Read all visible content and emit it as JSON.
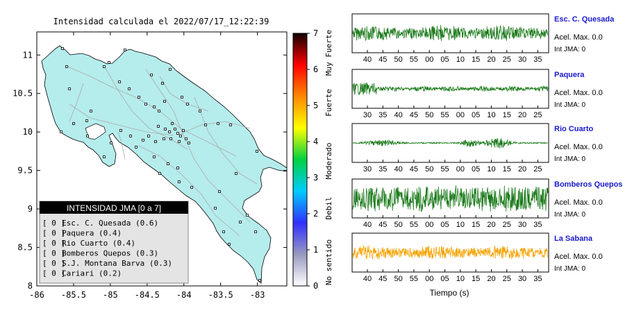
{
  "map": {
    "title": "Intensidad calculada el 2022/07/17_12:22:39",
    "lon_ticks": [
      "-86",
      "-85.5",
      "-85",
      "-84.5",
      "-84",
      "-83.5",
      "-83"
    ],
    "lat_ticks": [
      "11",
      "10.5",
      "10",
      "9.5",
      "9",
      "8.5",
      "8"
    ],
    "xlim": [
      -86,
      -82.6
    ],
    "ylim": [
      8,
      11.3
    ],
    "land_color": "#b5ecec",
    "legend_title": "INTENSIDAD JMA [0 a 7]",
    "legend_items": [
      {
        "code": "[ 0 ]",
        "label": "Esc. C. Quesada (0.6)"
      },
      {
        "code": "[ 0 ]",
        "label": "Paquera (0.4)"
      },
      {
        "code": "[ 0 ]",
        "label": "Rio Cuarto (0.4)"
      },
      {
        "code": "[ 0 ]",
        "label": "Bomberos Quepos (0.3)"
      },
      {
        "code": "[ 0 ]",
        "label": "S.J. Montana Barva (0.3)"
      },
      {
        "code": "[ 0 ]",
        "label": "Cariari (0.2)"
      }
    ]
  },
  "colorbar": {
    "ticks": [
      "0",
      "1",
      "2",
      "3",
      "4",
      "5",
      "6",
      "7"
    ],
    "labels": [
      "No sentido",
      "Debil",
      "Moderado",
      "Fuerte",
      "Muy Fuerte"
    ],
    "colors": [
      "#ffffff",
      "#9898c0",
      "#3030ff",
      "#00ccff",
      "#00d040",
      "#ffff00",
      "#ff8800",
      "#ff0000",
      "#100000"
    ]
  },
  "chart_data": {
    "type": "line",
    "xlabel": "Tiempo (s)",
    "stations": [
      {
        "name": "Esc. C. Quesada",
        "acel": "Acel. Max. 0.0",
        "int": "Int JMA: 0",
        "color": "#1a7a1a",
        "ticks": [
          "40",
          "45",
          "50",
          "55",
          "00",
          "05",
          "10",
          "15",
          "20",
          "25",
          "30",
          "35"
        ],
        "first_tick": 40,
        "amplitude": 0.55,
        "profile": "steady"
      },
      {
        "name": "Paquera",
        "acel": "Acel. Max. 0.0",
        "int": "Int JMA: 0",
        "color": "#1a7a1a",
        "ticks": [
          "30",
          "35",
          "40",
          "45",
          "50",
          "55",
          "00",
          "05",
          "10",
          "15",
          "20",
          "25"
        ],
        "first_tick": 30,
        "amplitude": 0.35,
        "profile": "early"
      },
      {
        "name": "Rio Cuarto",
        "acel": "Acel. Max. 0.0",
        "int": "Int JMA: 0",
        "color": "#1a7a1a",
        "ticks": [
          "30",
          "35",
          "40",
          "45",
          "50",
          "55",
          "00",
          "05",
          "10",
          "15",
          "20",
          "25"
        ],
        "first_tick": 30,
        "amplitude": 0.3,
        "profile": "burst"
      },
      {
        "name": "Bomberos Quepos",
        "acel": "Acel. Max. 0.0",
        "int": "Int JMA: 0",
        "color": "#1a7a1a",
        "ticks": [
          "40",
          "45",
          "50",
          "55",
          "00",
          "05",
          "10",
          "15",
          "20",
          "25",
          "30",
          "35"
        ],
        "first_tick": 40,
        "amplitude": 0.8,
        "profile": "noisy"
      },
      {
        "name": "La Sabana",
        "acel": "Acel. Max. 0.0",
        "int": "Int JMA: 0",
        "color": "#f4a300",
        "ticks": [
          "40",
          "45",
          "50",
          "55",
          "00",
          "05",
          "10",
          "15",
          "20",
          "25",
          "30",
          "35"
        ],
        "first_tick": 40,
        "amplitude": 0.5,
        "profile": "steady"
      }
    ]
  }
}
